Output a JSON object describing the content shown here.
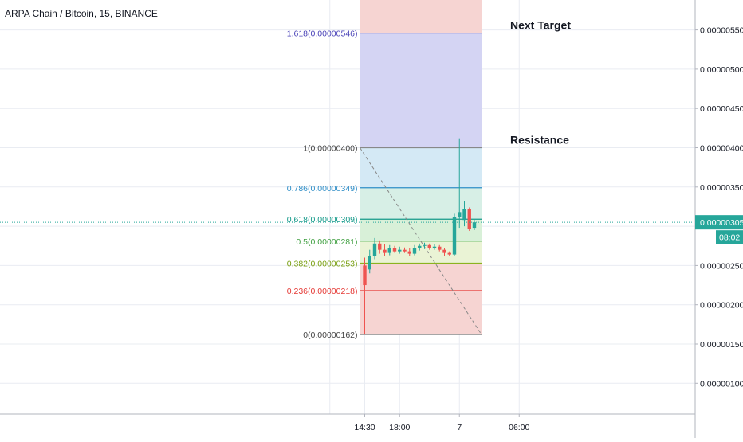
{
  "header": {
    "symbol": "ARPA Chain / Bitcoin, 15, BINANCE"
  },
  "colors": {
    "up": "#26a69a",
    "down": "#ef5350",
    "grid": "#e9ecf2",
    "axis_text": "#131722",
    "last_price_line": "#26a69a",
    "annotation": "#131722"
  },
  "chart_data": {
    "type": "candlestick",
    "title": "ARPA Chain / Bitcoin, 15, BINANCE",
    "xlabel": "",
    "ylabel": "",
    "ylim": [
      3e-07,
      5.9e-06
    ],
    "y_ticks": [
      {
        "value": 5.5e-06,
        "label": "0.00000550"
      },
      {
        "value": 5e-06,
        "label": "0.00000500"
      },
      {
        "value": 4.5e-06,
        "label": "0.00000450"
      },
      {
        "value": 4e-06,
        "label": "0.00000400"
      },
      {
        "value": 3.5e-06,
        "label": "0.00000350"
      },
      {
        "value": 2.5e-06,
        "label": "0.00000250"
      },
      {
        "value": 2e-06,
        "label": "0.00000200"
      },
      {
        "value": 1.5e-06,
        "label": "0.00000150"
      },
      {
        "value": 1e-06,
        "label": "0.00000100"
      }
    ],
    "x_ticks": [
      {
        "bar": 0,
        "label": "14:30"
      },
      {
        "bar": 7,
        "label": "18:00"
      },
      {
        "bar": 19,
        "label": "7"
      },
      {
        "bar": 31,
        "label": "06:00"
      }
    ],
    "bars_visible": 41,
    "last_price": {
      "value": 3.05e-06,
      "label": "0.00000305",
      "countdown": "08:02"
    },
    "candles": [
      {
        "o": 2.5e-06,
        "h": 2.6e-06,
        "l": 1.62e-06,
        "c": 2.25e-06
      },
      {
        "o": 2.45e-06,
        "h": 2.7e-06,
        "l": 2.4e-06,
        "c": 2.62e-06
      },
      {
        "o": 2.62e-06,
        "h": 2.85e-06,
        "l": 2.58e-06,
        "c": 2.78e-06
      },
      {
        "o": 2.78e-06,
        "h": 2.82e-06,
        "l": 2.65e-06,
        "c": 2.7e-06
      },
      {
        "o": 2.7e-06,
        "h": 2.77e-06,
        "l": 2.62e-06,
        "c": 2.66e-06
      },
      {
        "o": 2.66e-06,
        "h": 2.76e-06,
        "l": 2.63e-06,
        "c": 2.72e-06
      },
      {
        "o": 2.72e-06,
        "h": 2.75e-06,
        "l": 2.66e-06,
        "c": 2.68e-06
      },
      {
        "o": 2.68e-06,
        "h": 2.74e-06,
        "l": 2.65e-06,
        "c": 2.7e-06
      },
      {
        "o": 2.7e-06,
        "h": 2.73e-06,
        "l": 2.66e-06,
        "c": 2.68e-06
      },
      {
        "o": 2.68e-06,
        "h": 2.72e-06,
        "l": 2.62e-06,
        "c": 2.65e-06
      },
      {
        "o": 2.65e-06,
        "h": 2.76e-06,
        "l": 2.63e-06,
        "c": 2.72e-06
      },
      {
        "o": 2.72e-06,
        "h": 2.78e-06,
        "l": 2.69e-06,
        "c": 2.75e-06
      },
      {
        "o": 2.75e-06,
        "h": 2.79e-06,
        "l": 2.71e-06,
        "c": 2.76e-06
      },
      {
        "o": 2.76e-06,
        "h": 2.78e-06,
        "l": 2.7e-06,
        "c": 2.72e-06
      },
      {
        "o": 2.72e-06,
        "h": 2.77e-06,
        "l": 2.7e-06,
        "c": 2.74e-06
      },
      {
        "o": 2.74e-06,
        "h": 2.76e-06,
        "l": 2.68e-06,
        "c": 2.7e-06
      },
      {
        "o": 2.7e-06,
        "h": 2.72e-06,
        "l": 2.62e-06,
        "c": 2.66e-06
      },
      {
        "o": 2.66e-06,
        "h": 2.68e-06,
        "l": 2.62e-06,
        "c": 2.64e-06
      },
      {
        "o": 2.64e-06,
        "h": 3.16e-06,
        "l": 2.62e-06,
        "c": 3.12e-06
      },
      {
        "o": 3.12e-06,
        "h": 4.12e-06,
        "l": 2.98e-06,
        "c": 3.18e-06
      },
      {
        "o": 3.08e-06,
        "h": 3.32e-06,
        "l": 3e-06,
        "c": 3.22e-06
      },
      {
        "o": 3.22e-06,
        "h": 3.24e-06,
        "l": 2.94e-06,
        "c": 2.96e-06
      },
      {
        "o": 2.98e-06,
        "h": 3.08e-06,
        "l": 2.95e-06,
        "c": 3.05e-06
      }
    ],
    "fibonacci": {
      "first_bar": 0,
      "last_bar": 22.5,
      "levels": [
        {
          "ratio": 1.618,
          "price": 5.46e-06,
          "label": "1.618(0.00000546)",
          "line": "#3f36a8",
          "fill": "#d4d4f3",
          "text": "#4a43b8"
        },
        {
          "ratio": 1,
          "price": 4e-06,
          "label": "1(0.00000400)",
          "line": "#888888",
          "fill": "#e5e5e5",
          "text": "#444444"
        },
        {
          "ratio": 0.786,
          "price": 3.49e-06,
          "label": "0.786(0.00000349)",
          "line": "#2f8ec7",
          "fill": "#d4e9f5",
          "text": "#2f8ec7"
        },
        {
          "ratio": 0.618,
          "price": 3.09e-06,
          "label": "0.618(0.00000309)",
          "line": "#159a8a",
          "fill": "#d7efe6",
          "text": "#159a8a"
        },
        {
          "ratio": 0.5,
          "price": 2.81e-06,
          "label": "0.5(0.00000281)",
          "line": "#4caf50",
          "fill": "#d8f0d8",
          "text": "#3f9f40"
        },
        {
          "ratio": 0.382,
          "price": 2.53e-06,
          "label": "0.382(0.00000253)",
          "line": "#8bb320",
          "fill": "#eaf3d5",
          "text": "#7aa012"
        },
        {
          "ratio": 0.236,
          "price": 2.18e-06,
          "label": "0.236(0.00000218)",
          "line": "#e53935",
          "fill": "#f6d4d2",
          "text": "#e53935"
        },
        {
          "ratio": 0,
          "price": 1.62e-06,
          "label": "0(0.00000162)",
          "line": "#888888",
          "fill": null,
          "text": "#444444"
        }
      ],
      "extension_fill": "#f6d4d2"
    },
    "annotations": [
      {
        "text": "Next Target",
        "price": 5.46e-06
      },
      {
        "text": "Resistance",
        "price": 4e-06
      }
    ]
  }
}
